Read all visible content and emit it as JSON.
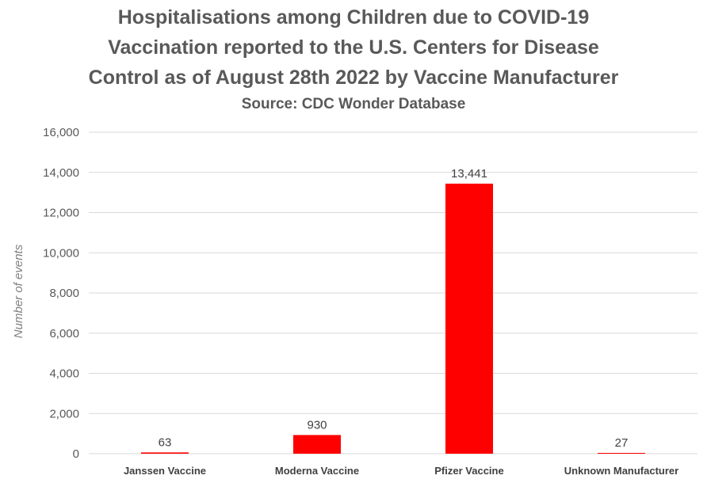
{
  "chart_data": {
    "type": "bar",
    "title_lines": [
      "Hospitalisations among Children due to COVID-19",
      "Vaccination reported to the U.S. Centers for Disease",
      "Control as of August 28th 2022 by Vaccine Manufacturer"
    ],
    "subtitle": "Source: CDC Wonder Database",
    "categories": [
      "Janssen Vaccine",
      "Moderna Vaccine",
      "Pfizer Vaccine",
      "Unknown Manufacturer"
    ],
    "values": [
      63,
      930,
      13441,
      27
    ],
    "data_labels": [
      "63",
      "930",
      "13,441",
      "27"
    ],
    "xlabel": "",
    "ylabel": "Number of events",
    "ylim": [
      0,
      16000
    ],
    "yticks": [
      0,
      2000,
      4000,
      6000,
      8000,
      10000,
      12000,
      14000,
      16000
    ],
    "ytick_labels": [
      "0",
      "2,000",
      "4,000",
      "6,000",
      "8,000",
      "10,000",
      "12,000",
      "14,000",
      "16,000"
    ],
    "grid": true,
    "legend": "none",
    "bar_color": "#ff0000",
    "grid_color": "#d9d9d9"
  }
}
